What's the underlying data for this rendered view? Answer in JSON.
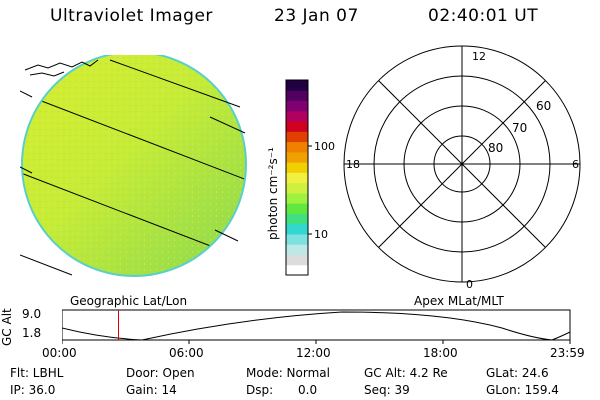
{
  "header": {
    "instrument": "Ultraviolet Imager",
    "date": "23 Jan 07",
    "time": "02:40:01 UT"
  },
  "colorbar": {
    "label": "photon cm⁻²s⁻¹",
    "ticks": [
      "100",
      "10"
    ],
    "colors": [
      "#ffffff",
      "#dcdcdc",
      "#bde8e8",
      "#7fe0e0",
      "#30d8d0",
      "#40e080",
      "#60e840",
      "#a0f040",
      "#d0f040",
      "#f0f040",
      "#f0d000",
      "#f0a000",
      "#f08000",
      "#e04000",
      "#d00020",
      "#b00060",
      "#800070",
      "#500060",
      "#200040"
    ]
  },
  "polar": {
    "mlt_labels": {
      "top": "12",
      "left": "18",
      "right": "6",
      "bottom": "0"
    },
    "lat_labels": [
      "60",
      "70",
      "80"
    ]
  },
  "map_labels": {
    "left": "Geographic Lat/Lon",
    "right": "Apex MLat/MLT"
  },
  "altitude_plot": {
    "ylabel": "GC Alt",
    "yticks": [
      "9.0",
      "1.8"
    ],
    "xticks": [
      "00:00",
      "06:00",
      "12:00",
      "18:00",
      "23:59"
    ],
    "current_time_hours": 2.67,
    "marker_color": "#e00000"
  },
  "footer": {
    "filter": "Flt: LBHL",
    "ip": "IP: 36.0",
    "door": "Door: Open",
    "gain": "Gain: 14",
    "mode": "Mode: Normal",
    "dsp_label": "Dsp:",
    "dsp_value": "0.0",
    "gc_alt": "GC Alt: 4.2 Re",
    "seq": "Seq: 39",
    "glat": "GLat: 24.6",
    "glon": "GLon: 159.4"
  }
}
